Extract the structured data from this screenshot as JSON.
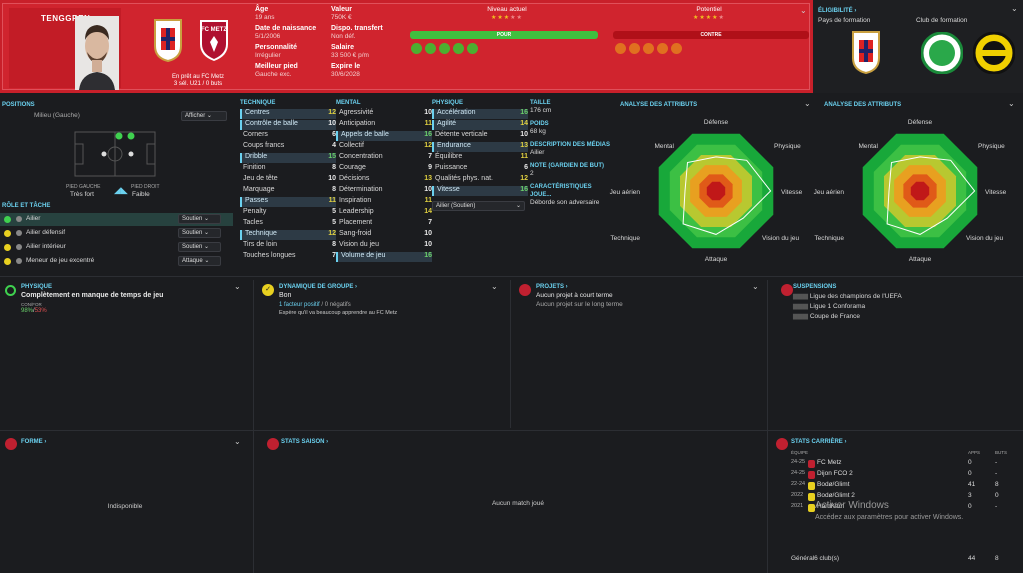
{
  "player": {
    "name": "TENGGREN",
    "loan": "En prêt au FC Metz",
    "loan_stats": "3 sél. U21 / 0 buts"
  },
  "info": [
    {
      "label": "Âge",
      "value": "19 ans"
    },
    {
      "label": "Date de naissance",
      "value": "5/1/2006"
    },
    {
      "label": "Personnalité",
      "value": "Irrégulier"
    },
    {
      "label": "Meilleur pied",
      "value": "Gauche exc."
    }
  ],
  "info2": [
    {
      "label": "Valeur",
      "value": "750K €"
    },
    {
      "label": "Dispo. transfert",
      "value": "Non déf."
    },
    {
      "label": "Salaire",
      "value": "33 500 € p/m"
    },
    {
      "label": "Expire le",
      "value": "30/6/2028"
    }
  ],
  "level": {
    "current": "Niveau actuel",
    "potential": "Potentiel",
    "current_stars": 3,
    "potential_stars": 4,
    "pour": "POUR",
    "contre": "CONTRE"
  },
  "eligibility": {
    "title": "ÉLIGIBILITÉ",
    "country_label": "Pays de formation",
    "club_label": "Club de formation"
  },
  "positions": {
    "title": "POSITIONS",
    "main": "Milieu (Gauche)",
    "show": "Afficher",
    "left_foot_label": "PIED GAUCHE",
    "left_foot": "Très fort",
    "right_foot_label": "PIED DROIT",
    "right_foot": "Faible"
  },
  "roles": {
    "title": "RÔLE ET TÂCHE",
    "items": [
      {
        "role": "Ailier",
        "duty": "Soutien"
      },
      {
        "role": "Ailier défensif",
        "duty": "Soutien"
      },
      {
        "role": "Ailier intérieur",
        "duty": "Soutien"
      },
      {
        "role": "Meneur de jeu excentré",
        "duty": "Attaque"
      }
    ]
  },
  "technique": {
    "title": "TECHNIQUE",
    "items": [
      [
        "Centres",
        "12"
      ],
      [
        "Contrôle de balle",
        "10"
      ],
      [
        "Corners",
        "6"
      ],
      [
        "Coups francs",
        "4"
      ],
      [
        "Dribble",
        "15"
      ],
      [
        "Finition",
        "8"
      ],
      [
        "Jeu de tête",
        "10"
      ],
      [
        "Marquage",
        "8"
      ],
      [
        "Passes",
        "11"
      ],
      [
        "Penalty",
        "5"
      ],
      [
        "Tacles",
        "5"
      ],
      [
        "Technique",
        "12"
      ],
      [
        "Tirs de loin",
        "8"
      ],
      [
        "Touches longues",
        "7"
      ]
    ]
  },
  "mental": {
    "title": "MENTAL",
    "items": [
      [
        "Agressivité",
        "10"
      ],
      [
        "Anticipation",
        "11"
      ],
      [
        "Appels de balle",
        "16"
      ],
      [
        "Collectif",
        "12"
      ],
      [
        "Concentration",
        "7"
      ],
      [
        "Courage",
        "9"
      ],
      [
        "Décisions",
        "13"
      ],
      [
        "Détermination",
        "10"
      ],
      [
        "Inspiration",
        "11"
      ],
      [
        "Leadership",
        "14"
      ],
      [
        "Placement",
        "7"
      ],
      [
        "Sang-froid",
        "10"
      ],
      [
        "Vision du jeu",
        "10"
      ],
      [
        "Volume de jeu",
        "16"
      ]
    ]
  },
  "physique": {
    "title": "PHYSIQUE",
    "items": [
      [
        "Accélération",
        "16"
      ],
      [
        "Agilité",
        "14"
      ],
      [
        "Détente verticale",
        "10"
      ],
      [
        "Endurance",
        "13"
      ],
      [
        "Équilibre",
        "11"
      ],
      [
        "Puissance",
        "6"
      ],
      [
        "Qualités phys. nat.",
        "12"
      ],
      [
        "Vitesse",
        "16"
      ]
    ],
    "role_select": "Ailier (Soutien)"
  },
  "bio": {
    "taille_label": "TAILLE",
    "taille": "176 cm",
    "poids_label": "POIDS",
    "poids": "68 kg",
    "desc_label": "DESCRIPTION DES MÉDIAS",
    "desc": "Ailier",
    "note_label": "NOTE (GARDIEN DE BUT)",
    "note": "2",
    "carac_label": "CARACTÉRISTIQUES JOUE...",
    "carac": "Déborde son adversaire"
  },
  "radar": {
    "title": "ANALYSE DES ATTRIBUTS",
    "labels": [
      "Défense",
      "Physique",
      "Vitesse",
      "Vision du jeu",
      "Attaque",
      "Technique",
      "Jeu aérien",
      "Mental"
    ]
  },
  "physical": {
    "title": "PHYSIQUE",
    "status": "Complètement en manque de temps de jeu",
    "sub": "CON/FOR",
    "v1": "98%",
    "v2": "53%"
  },
  "group": {
    "title": "DYNAMIQUE DE GROUPE",
    "status": "Bon",
    "factor": "1 facteur positif",
    "neg": " / 0 négatifs",
    "note": "Espère qu'il va beaucoup apprendre au FC Metz"
  },
  "projects": {
    "title": "PROJETS",
    "short": "Aucun projet à court terme",
    "long": "Aucun projet sur le long terme"
  },
  "suspensions": {
    "title": "SUSPENSIONS",
    "items": [
      "Ligue des champions de l'UEFA",
      "Ligue 1 Conforama",
      "Coupe de France"
    ]
  },
  "form": {
    "title": "FORME",
    "status": "Indisponible"
  },
  "season": {
    "title": "STATS SAISON",
    "status": "Aucun match joué"
  },
  "career": {
    "title": "STATS CARRIÈRE",
    "h_team": "ÉQUIPE",
    "h_apps": "APPS",
    "h_goals": "BUTS",
    "rows": [
      [
        "24-25",
        "FC Metz",
        "0",
        "-"
      ],
      [
        "24-25",
        "Dijon FCO 2",
        "0",
        "-"
      ],
      [
        "22-24",
        "Bodø/Glimt",
        "41",
        "8"
      ],
      [
        "2022",
        "Bodø/Glimt 2",
        "3",
        "0"
      ],
      [
        "2021",
        "HamKam",
        "0",
        "-"
      ]
    ],
    "total_label": "Général6 club(s)",
    "total_apps": "44",
    "total_goals": "8"
  },
  "watermark": {
    "line1": "Activer Windows",
    "line2": "Accédez aux paramètres pour activer Windows."
  }
}
